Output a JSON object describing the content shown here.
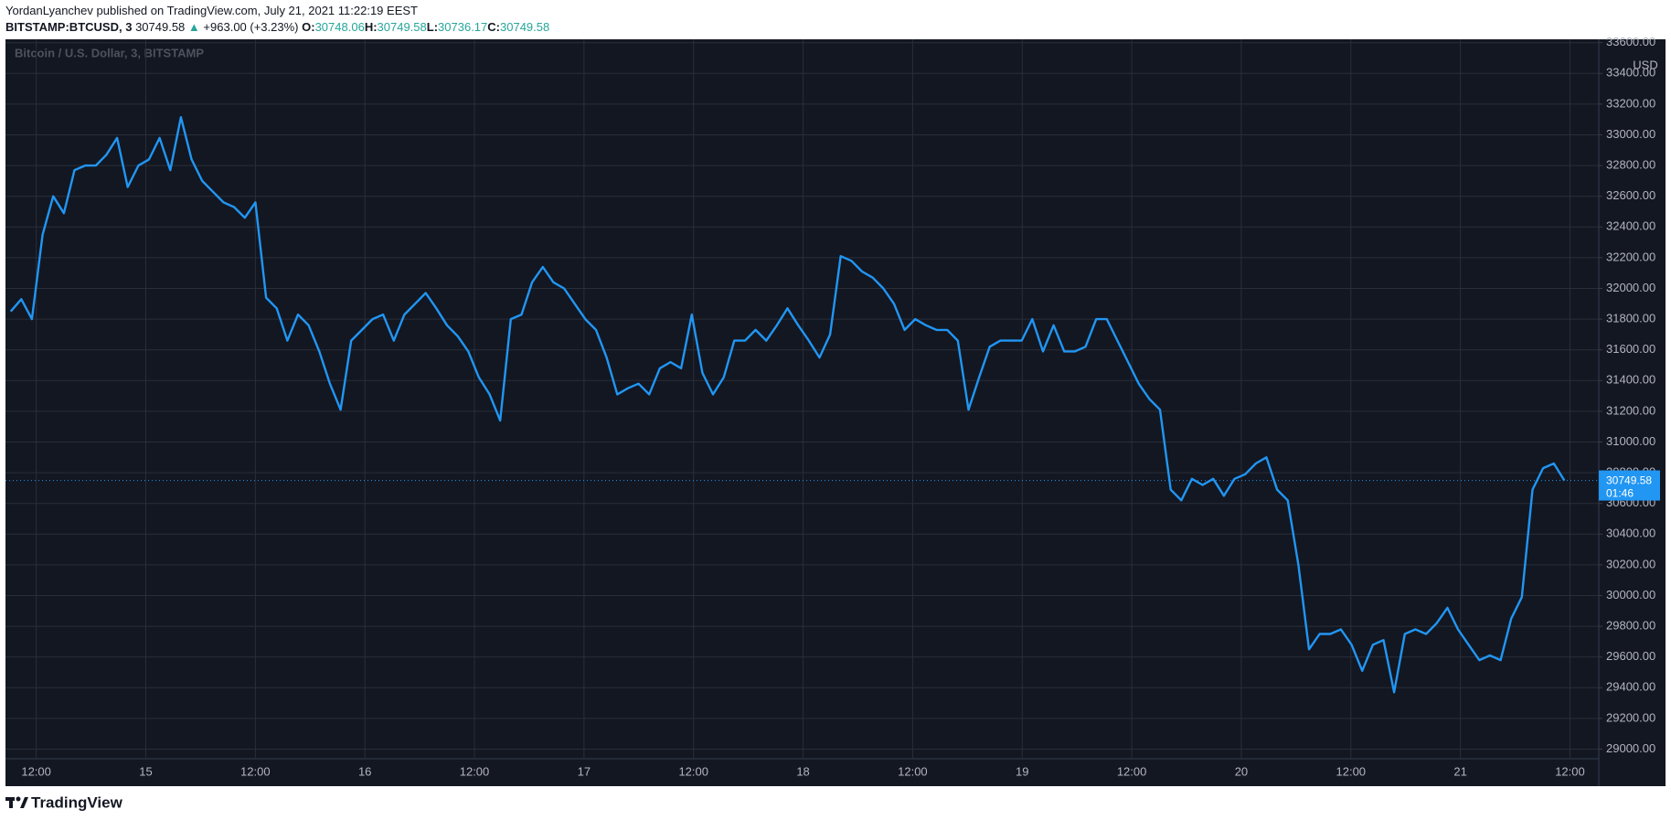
{
  "header": {
    "publisher": "YordanLyanchev published on TradingView.com, July 21, 2021 11:22:19 EEST",
    "symbol": "BITSTAMP:BTCUSD, 3",
    "last": "30749.58",
    "arrow": "▲",
    "change": "+963.00 (+3.23%)",
    "ohlc": [
      {
        "label": "O:",
        "value": "30748.06"
      },
      {
        "label": "H:",
        "value": "30749.58"
      },
      {
        "label": "L:",
        "value": "30736.17"
      },
      {
        "label": "C:",
        "value": "30749.58"
      }
    ]
  },
  "chart_data": {
    "type": "line",
    "title": "Bitcoin / U.S. Dollar, 3, BITSTAMP",
    "y_unit": "USD",
    "x_axis_labels": [
      "12:00",
      "15",
      "12:00",
      "16",
      "12:00",
      "17",
      "12:00",
      "18",
      "12:00",
      "19",
      "12:00",
      "20",
      "12:00",
      "21",
      "12:00"
    ],
    "ylim": [
      28937.5,
      33622
    ],
    "yticks": [
      {
        "value": 29000,
        "label": "29000.00"
      },
      {
        "value": 29200,
        "label": "29200.00"
      },
      {
        "value": 29400,
        "label": "29400.00"
      },
      {
        "value": 29600,
        "label": "29600.00"
      },
      {
        "value": 29800,
        "label": "29800.00"
      },
      {
        "value": 30000,
        "label": "30000.00"
      },
      {
        "value": 30200,
        "label": "30200.00"
      },
      {
        "value": 30400,
        "label": "30400.00"
      },
      {
        "value": 30600,
        "label": "30600.00"
      },
      {
        "value": 30800,
        "label": "30800.00"
      },
      {
        "value": 31000,
        "label": "31000.00"
      },
      {
        "value": 31200,
        "label": "31200.00"
      },
      {
        "value": 31400,
        "label": "31400.00"
      },
      {
        "value": 31600,
        "label": "31600.00"
      },
      {
        "value": 31800,
        "label": "31800.00"
      },
      {
        "value": 32000,
        "label": "32000.00"
      },
      {
        "value": 32200,
        "label": "32200.00"
      },
      {
        "value": 32400,
        "label": "32400.00"
      },
      {
        "value": 32600,
        "label": "32600.00"
      },
      {
        "value": 32800,
        "label": "32800.00"
      },
      {
        "value": 33000,
        "label": "33000.00"
      },
      {
        "value": 33200,
        "label": "33200.00"
      },
      {
        "value": 33400,
        "label": "33400.00"
      },
      {
        "value": 33600,
        "label": "33600.00"
      }
    ],
    "grid": true,
    "series": [
      {
        "name": "BTCUSD",
        "color": "#2196f3",
        "values": [
          31850,
          31930,
          31800,
          32350,
          32600,
          32490,
          32770,
          32800,
          32800,
          32870,
          32980,
          32660,
          32800,
          32840,
          32980,
          32770,
          33115,
          32840,
          32700,
          32630,
          32560,
          32530,
          32460,
          32560,
          31940,
          31870,
          31660,
          31830,
          31760,
          31590,
          31380,
          31210,
          31660,
          31730,
          31800,
          31830,
          31660,
          31830,
          31900,
          31970,
          31870,
          31760,
          31690,
          31590,
          31420,
          31310,
          31140,
          31800,
          31830,
          32040,
          32140,
          32040,
          32000,
          31900,
          31800,
          31730,
          31550,
          31310,
          31350,
          31380,
          31310,
          31480,
          31520,
          31480,
          31830,
          31450,
          31310,
          31420,
          31660,
          31660,
          31730,
          31660,
          31760,
          31870,
          31760,
          31660,
          31550,
          31700,
          32210,
          32180,
          32110,
          32070,
          32000,
          31900,
          31730,
          31800,
          31760,
          31730,
          31730,
          31660,
          31210,
          31420,
          31620,
          31660,
          31660,
          31660,
          31800,
          31590,
          31760,
          31590,
          31590,
          31620,
          31800,
          31800,
          31660,
          31520,
          31380,
          31280,
          31210,
          30690,
          30620,
          30760,
          30720,
          30760,
          30650,
          30760,
          30790,
          30860,
          30900,
          30690,
          30620,
          30200,
          29650,
          29750,
          29750,
          29780,
          29680,
          29510,
          29680,
          29710,
          29370,
          29750,
          29780,
          29750,
          29820,
          29920,
          29780,
          29680,
          29580,
          29610,
          29580,
          29850,
          29990,
          30690,
          30830,
          30860,
          30749.58
        ]
      }
    ],
    "countdown": "01:46"
  },
  "footer": {
    "brand": "TradingView"
  }
}
